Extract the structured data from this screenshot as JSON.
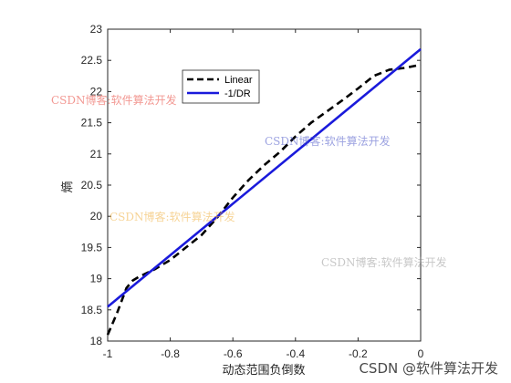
{
  "chart_data": {
    "type": "line",
    "title": "",
    "xlabel": "动态范围负倒数",
    "ylabel": "熵",
    "xlim": [
      -1,
      0
    ],
    "ylim": [
      18,
      23
    ],
    "xticks": [
      -1,
      -0.8,
      -0.6,
      -0.4,
      -0.2,
      0
    ],
    "xtick_labels": [
      "-1",
      "-0.8",
      "-0.6",
      "-0.4",
      "-0.2",
      "0"
    ],
    "yticks": [
      18,
      18.5,
      19,
      19.5,
      20,
      20.5,
      21,
      21.5,
      22,
      22.5,
      23
    ],
    "ytick_labels": [
      "18",
      "18.5",
      "19",
      "19.5",
      "20",
      "20.5",
      "21",
      "21.5",
      "22",
      "22.5",
      "23"
    ],
    "grid": false,
    "legend_position": "upper-center",
    "series": [
      {
        "name": "Linear",
        "color": "#000000",
        "style": "dashed",
        "x": [
          -1,
          -0.97,
          -0.94,
          -0.92,
          -0.9,
          -0.85,
          -0.8,
          -0.75,
          -0.7,
          -0.65,
          -0.6,
          -0.55,
          -0.5,
          -0.45,
          -0.4,
          -0.35,
          -0.3,
          -0.25,
          -0.2,
          -0.15,
          -0.1,
          -0.05,
          0
        ],
        "y": [
          18.1,
          18.45,
          18.85,
          18.97,
          19.03,
          19.15,
          19.3,
          19.5,
          19.7,
          19.98,
          20.3,
          20.58,
          20.82,
          21.03,
          21.28,
          21.5,
          21.68,
          21.86,
          22.05,
          22.25,
          22.35,
          22.38,
          22.43
        ]
      },
      {
        "name": "-1/DR",
        "color": "#1a1adb",
        "style": "solid",
        "x": [
          -1,
          0
        ],
        "y": [
          18.55,
          22.68
        ]
      }
    ]
  },
  "watermarks": {
    "wm1": "CSDN博客:软件算法开发",
    "wm2": "CSDN博客:软件算法开发",
    "wm3": "CSDN博客:软件算法开发",
    "wm4": "CSDN博客:软件算法开发",
    "wm5": "CSDN @软件算法开发"
  }
}
